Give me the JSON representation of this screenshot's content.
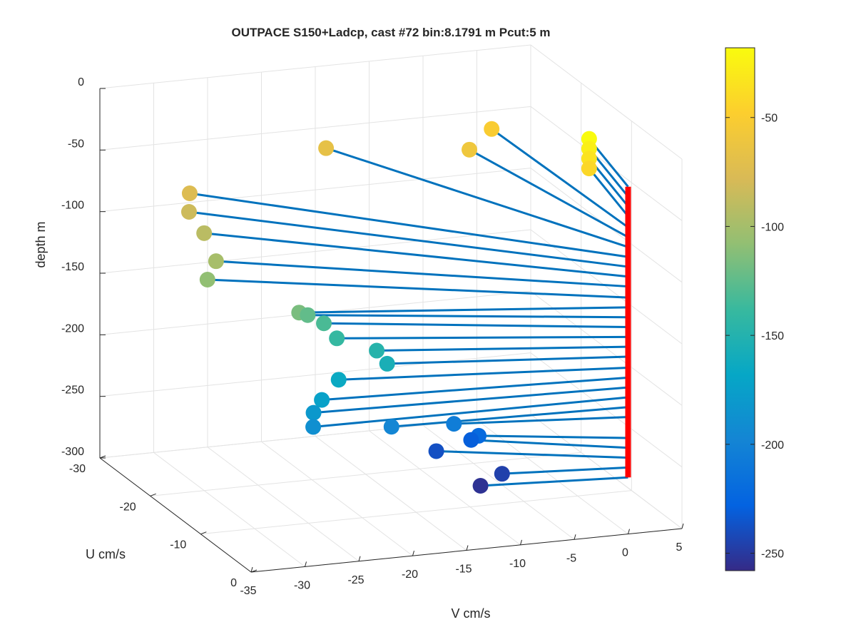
{
  "chart_data": {
    "type": "scatter",
    "title": "OUTPACE S150+Ladcp, cast #72 bin:8.1791 m  Pcut:5 m",
    "xlabel": "V cm/s",
    "ylabel": "U cm/s",
    "zlabel": "depth m",
    "xlim": [
      -35,
      5
    ],
    "ylim": [
      -30,
      0
    ],
    "zlim": [
      -300,
      0
    ],
    "x_ticks": [
      "-35",
      "-30",
      "-25",
      "-20",
      "-15",
      "-10",
      "-5",
      "0",
      "5"
    ],
    "y_ticks": [
      "-30",
      "-20",
      "-10",
      "0"
    ],
    "z_ticks": [
      "0",
      "-50",
      "-100",
      "-150",
      "-200",
      "-250",
      "-300"
    ],
    "colorbar": {
      "ticks": [
        "-50",
        "-100",
        "-150",
        "-200",
        "-250"
      ],
      "range": [
        -258,
        -18
      ],
      "colormap": "parula"
    },
    "grid": true,
    "profile_line_color": "#0072bd",
    "axis_line_color": "#ff0000",
    "points": [
      {
        "depth": -18,
        "v": 2.0,
        "u": -12.0
      },
      {
        "depth": -26,
        "v": 2.0,
        "u": -12.0
      },
      {
        "depth": -34,
        "v": 2.0,
        "u": -12.0
      },
      {
        "depth": -42,
        "v": 2.0,
        "u": -12.0
      },
      {
        "depth": -51,
        "v": -0.5,
        "u": -26.0
      },
      {
        "depth": -59,
        "v": -3.5,
        "u": -24.0
      },
      {
        "depth": -67,
        "v": -14.0,
        "u": -30.0
      },
      {
        "depth": -75,
        "v": -29.0,
        "u": -25.0
      },
      {
        "depth": -83,
        "v": -30.0,
        "u": -23.0
      },
      {
        "depth": -91,
        "v": -30.0,
        "u": -20.0
      },
      {
        "depth": -99,
        "v": -31.0,
        "u": -15.5
      },
      {
        "depth": -108,
        "v": -32.5,
        "u": -14.0
      },
      {
        "depth": -116,
        "v": -27.5,
        "u": -6.5
      },
      {
        "depth": -124,
        "v": -26.0,
        "u": -8.0
      },
      {
        "depth": -132,
        "v": -24.5,
        "u": -8.0
      },
      {
        "depth": -140,
        "v": -24.0,
        "u": -6.5
      },
      {
        "depth": -148,
        "v": -21.0,
        "u": -5.0
      },
      {
        "depth": -156,
        "v": -20.5,
        "u": -4.0
      },
      {
        "depth": -165,
        "v": -25.0,
        "u": -4.0
      },
      {
        "depth": -173,
        "v": -27.5,
        "u": -2.0
      },
      {
        "depth": -181,
        "v": -28.5,
        "u": -1.5
      },
      {
        "depth": -189,
        "v": -29.0,
        "u": -0.5
      },
      {
        "depth": -197,
        "v": -21.5,
        "u": -1.0
      },
      {
        "depth": -205,
        "v": -15.0,
        "u": -2.5
      },
      {
        "depth": -222,
        "v": -12.0,
        "u": -4.0
      },
      {
        "depth": -230,
        "v": -12.0,
        "u": -5.5
      },
      {
        "depth": -238,
        "v": -15.0,
        "u": -6.0
      },
      {
        "depth": -246,
        "v": -11.0,
        "u": -1.5
      },
      {
        "depth": -254,
        "v": -13.0,
        "u": -1.5
      }
    ]
  }
}
